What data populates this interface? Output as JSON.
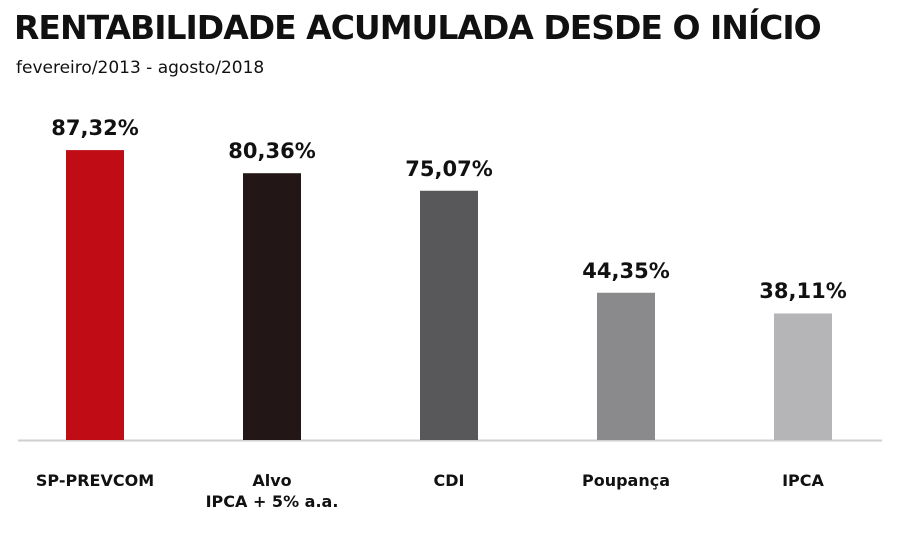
{
  "chart_data": {
    "type": "bar",
    "title": "RENTABILIDADE ACUMULADA DESDE O INÍCIO",
    "subtitle": "fevereiro/2013 - agosto/2018",
    "categories": [
      "SP-PREVCOM",
      "Alvo\nIPCA + 5% a.a.",
      "CDI",
      "Poupança",
      "IPCA"
    ],
    "values": [
      87.32,
      80.36,
      75.07,
      44.35,
      38.11
    ],
    "value_labels": [
      "87,32%",
      "80,36%",
      "75,07%",
      "44,35%",
      "38,11%"
    ],
    "colors": [
      "#c00d15",
      "#231616",
      "#58585a",
      "#8a898c",
      "#b5b5b7"
    ]
  }
}
